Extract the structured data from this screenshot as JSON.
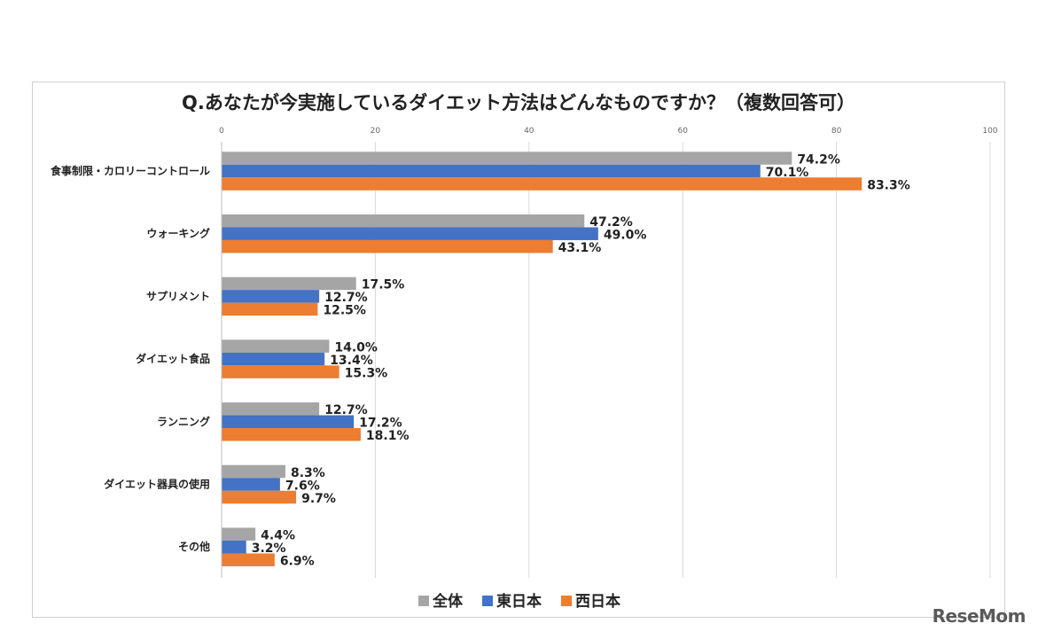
{
  "chart_data": {
    "type": "bar",
    "orientation": "horizontal",
    "title": "Q.あなたが今実施しているダイエット方法はどんなものですか？（複数回答可）",
    "categories": [
      "食事制限・カロリーコントロール",
      "ウォーキング",
      "サプリメント",
      "ダイエット食品",
      "ランニング",
      "ダイエット器具の使用",
      "その他"
    ],
    "series": [
      {
        "name": "全体",
        "color": "#a5a5a5",
        "values": [
          74.2,
          47.2,
          17.5,
          14.0,
          12.7,
          8.3,
          4.4
        ]
      },
      {
        "name": "東日本",
        "color": "#4472c4",
        "values": [
          70.1,
          49.0,
          12.7,
          13.4,
          17.2,
          7.6,
          3.2
        ]
      },
      {
        "name": "西日本",
        "color": "#ed7d31",
        "values": [
          83.3,
          43.1,
          12.5,
          15.3,
          18.1,
          9.7,
          6.9
        ]
      }
    ],
    "xlim": [
      0,
      100
    ],
    "xticks": [
      0,
      20,
      40,
      60,
      80,
      100
    ],
    "value_suffix": "%",
    "legend_position": "bottom",
    "grid": true
  },
  "watermark": "ReseMom"
}
